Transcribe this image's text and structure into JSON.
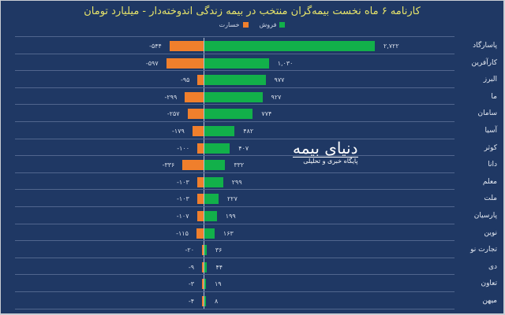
{
  "title": "کارنامه ۶ ماه نخست بیمه‌گران منتخب در بیمه زندگی اندوخته‌دار - میلیارد تومان",
  "legend": [
    {
      "label": "فروش",
      "color": "#12b04a"
    },
    {
      "label": "خسارت",
      "color": "#f07f2c"
    }
  ],
  "watermark": {
    "line1": "دنیای بیمه",
    "line2": "پایگاه خبری و تحلیلی"
  },
  "chart_data": {
    "type": "bar",
    "orientation": "horizontal-diverging",
    "title": "کارنامه ۶ ماه نخست بیمه‌گران منتخب در بیمه زندگی اندوخته‌دار - میلیارد تومان",
    "xlabel": "",
    "ylabel": "",
    "legend_position": "top",
    "grid": true,
    "categories": [
      "پاسارگاد",
      "کارآفرین",
      "البرز",
      "ما",
      "سامان",
      "آسیا",
      "کوثر",
      "دانا",
      "معلم",
      "ملت",
      "پارسیان",
      "نوین",
      "تجارت نو",
      "دی",
      "تعاون",
      "میهن"
    ],
    "series": [
      {
        "name": "فروش",
        "color": "#12b04a",
        "values": [
          2722,
          1030,
          977,
          927,
          774,
          482,
          407,
          332,
          299,
          227,
          199,
          163,
          36,
          44,
          19,
          8
        ],
        "labels": [
          "۲,۷۲۲",
          "۱,۰۳۰",
          "۹۷۷",
          "۹۲۷",
          "۷۷۴",
          "۴۸۲",
          "۴۰۷",
          "۳۳۲",
          "۲۹۹",
          "۲۲۷",
          "۱۹۹",
          "۱۶۳",
          "۳۶",
          "۴۴",
          "۱۹",
          "۸"
        ]
      },
      {
        "name": "خسارت",
        "color": "#f07f2c",
        "values": [
          -544,
          -597,
          -95,
          -299,
          -257,
          -179,
          -100,
          -336,
          -103,
          -103,
          -107,
          -115,
          -20,
          -9,
          -3,
          -4
        ],
        "labels": [
          "-۵۴۴",
          "-۵۹۷",
          "-۹۵",
          "-۲۹۹",
          "-۲۵۷",
          "-۱۷۹",
          "-۱۰۰",
          "-۳۳۶",
          "-۱۰۳",
          "-۱۰۳",
          "-۱۰۷",
          "-۱۱۵",
          "-۲۰",
          "-۹",
          "-۳",
          "-۴"
        ]
      }
    ]
  }
}
